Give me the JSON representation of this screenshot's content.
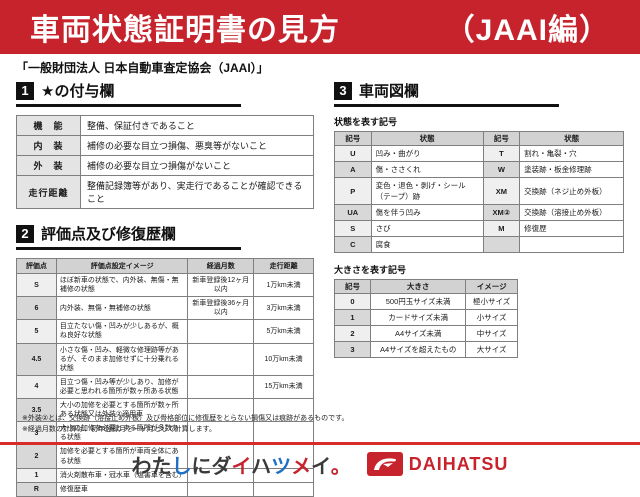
{
  "header": {
    "title": "車両状態証明書の見方",
    "edition": "（JAAI編）"
  },
  "subtitle": "「一般財団法人 日本自動車査定協会（JAAI）」",
  "colors": {
    "accent_red": "#c7232d",
    "footer_rule_red": "#d92b27",
    "section_black": "#111111",
    "table_header_gray": "#d2d2d2",
    "symbol_cell_light": "#efefef",
    "symbol_cell_dark": "#d8d8d8"
  },
  "section1": {
    "num": "1",
    "title": "★の付与欄",
    "rows": [
      {
        "label": "機　能",
        "text": "整備、保証付きであること"
      },
      {
        "label": "内　装",
        "text": "補修の必要な目立つ損傷、悪臭等がないこと"
      },
      {
        "label": "外　装",
        "text": "補修の必要な目立つ損傷がないこと"
      },
      {
        "label": "走行距離",
        "text": "整備記録簿等があり、実走行であることが確認できること"
      }
    ]
  },
  "section2": {
    "num": "2",
    "title": "評価点及び修復歴欄",
    "headers": {
      "score": "評価点",
      "desc": "評価点設定イメージ",
      "months": "経過月数",
      "km": "走行距離"
    },
    "rows": [
      {
        "score": "S",
        "desc": "ほぼ新車の状態で、内外装、無傷・無補修の状態",
        "months": "新車登録後12ヶ月以内",
        "km": "1万km未満"
      },
      {
        "score": "6",
        "desc": "内外装、無傷・無補修の状態",
        "months": "新車登録後36ヶ月以内",
        "km": "3万km未満"
      },
      {
        "score": "5",
        "desc": "目立たない傷・凹みが少しあるが、概ね良好な状態",
        "months": "",
        "km": "5万km未満"
      },
      {
        "score": "4.5",
        "desc": "小さな傷・凹み、軽微な修理跡等があるが、そのまま加修せずに十分乗れる状態",
        "months": "",
        "km": "10万km未満"
      },
      {
        "score": "4",
        "desc": "目立つ傷・凹み等が少しあり、加修が必要と思われる箇所が数ヶ所ある状態",
        "months": "",
        "km": "15万km未満"
      },
      {
        "score": "3.5",
        "desc": "大小の加修を必要とする箇所が数ヶ所ある状態又は外装②適用車",
        "months": "",
        "km": ""
      },
      {
        "score": "3",
        "desc": "大小の加修を必要とする箇所が多数ある状態",
        "months": "",
        "km": ""
      },
      {
        "score": "2",
        "desc": "加修を必要とする箇所が車両全体にある状態",
        "months": "",
        "km": ""
      },
      {
        "score": "1",
        "desc": "消火剤散布車・冠水車（塩害車を含む）",
        "months": "",
        "km": ""
      },
      {
        "score": "R",
        "desc": "修復歴車",
        "months": "",
        "km": ""
      }
    ]
  },
  "section3": {
    "num": "3",
    "title": "車両図欄",
    "state_table": {
      "caption": "状態を表す記号",
      "headers": [
        "記号",
        "状態",
        "記号",
        "状態"
      ],
      "rows": [
        [
          "U",
          "凹み・曲がり",
          "T",
          "割れ・亀裂・穴"
        ],
        [
          "A",
          "傷・ささくれ",
          "W",
          "塗装跡・板金修理跡"
        ],
        [
          "P",
          "変色・退色・剥げ・シール（テープ）跡",
          "XM",
          "交換跡（ネジ止め外板）"
        ],
        [
          "UA",
          "傷を伴う凹み",
          "XM②",
          "交換跡（溶接止め外板）"
        ],
        [
          "S",
          "さび",
          "M",
          "修復歴"
        ],
        [
          "C",
          "腐食",
          "",
          ""
        ]
      ]
    },
    "size_table": {
      "caption": "大きさを表す記号",
      "headers": [
        "記号",
        "大きさ",
        "イメージ"
      ],
      "rows": [
        [
          "0",
          "500円玉サイズ未満",
          "極小サイズ"
        ],
        [
          "1",
          "カードサイズ未満",
          "小サイズ"
        ],
        [
          "2",
          "A4サイズ未満",
          "中サイズ"
        ],
        [
          "3",
          "A4サイズを超えたもの",
          "大サイズ"
        ]
      ]
    }
  },
  "notes": [
    "※外装②とは、交換跡（溶接止め外板）及び骨格部位に修復歴をとらない損傷又は痕跡があるものです。",
    "※経過月数の計算は、初年登録月を一ヶ月として計算します。"
  ],
  "footer": {
    "tagline": "わたしにダイハツメイ。",
    "tagline_colors": [
      "#3a3a3a",
      "#3a3a3a",
      "#1f6fc4",
      "#3a3a3a",
      "#3a3a3a",
      "#c7232d",
      "#3a3a3a",
      "#1f6fc4",
      "#c7232d",
      "#3a3a3a",
      "#c7232d"
    ],
    "brand": "DAIHATSU"
  }
}
